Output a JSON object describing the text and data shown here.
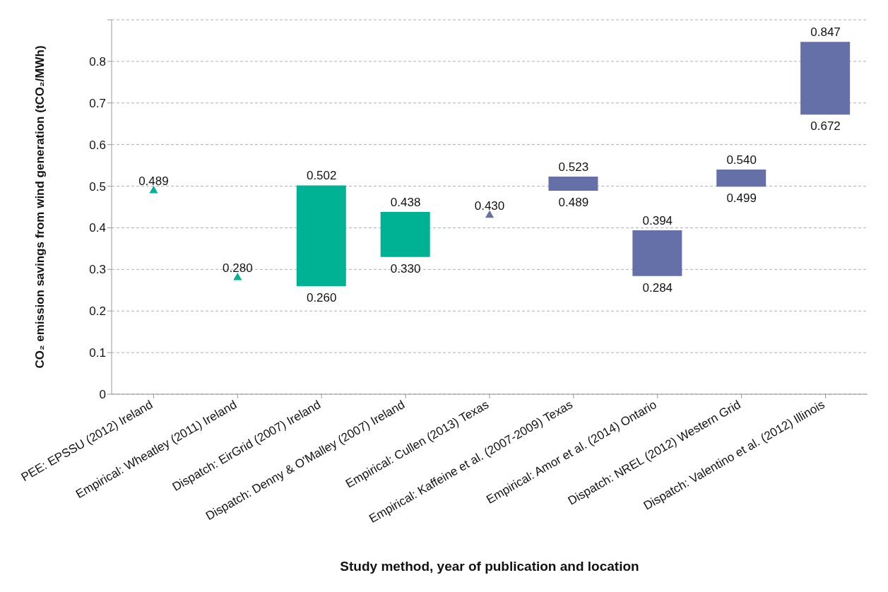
{
  "chart_data": {
    "type": "bar",
    "xlabel": "Study method, year of publication and location",
    "ylabel": "CO₂ emission savings  from wind generation (tCO₂/MWh)",
    "categories": [
      "PEE: EPSSU (2012) Ireland",
      "Empirical: Wheatley (2011) Ireland",
      "Dispatch: EirGrid (2007) Ireland",
      "Dispatch: Denny & O'Malley (2007) Ireland",
      "Empirical: Cullen (2013) Texas",
      "Empirical: Kaffeine et al. (2007-2009) Texas",
      "Empirical: Amor et al. (2014) Ontario",
      "Dispatch: NREL (2012) Western Grid",
      "Dispatch: Valentino et al. (2012) Illinois"
    ],
    "series": [
      {
        "base": [
          null,
          null,
          0.26,
          0.33,
          null,
          0.489,
          0.284,
          0.499,
          0.672
        ],
        "values": [
          null,
          null,
          0.242,
          0.108,
          null,
          0.034,
          0.11,
          0.041,
          0.175
        ],
        "colors": [
          "#00b294",
          "#00b294",
          "#00b294",
          "#00b294",
          "#6670a8",
          "#6670a8",
          "#6670a8",
          "#6670a8",
          "#6670a8"
        ]
      },
      {
        "type": "scatter",
        "marker": "triangle",
        "values": [
          0.489,
          0.28,
          null,
          null,
          0.43,
          null,
          null,
          null,
          null
        ],
        "colors": [
          "#00b294",
          "#00b294",
          "#00b294",
          "#00b294",
          "#6670a8",
          "#6670a8",
          "#6670a8",
          "#6670a8",
          "#6670a8"
        ]
      }
    ],
    "annotations": [
      {
        "text": "0.489",
        "x": "PEE: EPSSU (2012) Ireland",
        "y": 0.489
      },
      {
        "text": "0.280",
        "x": "Empirical: Wheatley (2011) Ireland",
        "y": 0.28
      },
      {
        "text": "0.502",
        "x": "Dispatch: EirGrid (2007) Ireland",
        "y": 0.502
      },
      {
        "text": "0.260",
        "x": "Dispatch: EirGrid (2007) Ireland",
        "y": 0.26
      },
      {
        "text": "0.438",
        "x": "Dispatch: Denny & O'Malley (2007) Ireland",
        "y": 0.438
      },
      {
        "text": "0.330",
        "x": "Dispatch: Denny & O'Malley (2007) Ireland",
        "y": 0.33
      },
      {
        "text": "0.430",
        "x": "Empirical: Cullen (2013) Texas",
        "y": 0.43
      },
      {
        "text": "0.523",
        "x": "Empirical: Kaffeine et al. (2007-2009) Texas",
        "y": 0.523
      },
      {
        "text": "0.489",
        "x": "Empirical: Kaffeine et al. (2007-2009) Texas",
        "y": 0.489
      },
      {
        "text": "0.394",
        "x": "Empirical: Amor et al. (2014) Ontario",
        "y": 0.394
      },
      {
        "text": "0.284",
        "x": "Empirical: Amor et al. (2014) Ontario",
        "y": 0.284
      },
      {
        "text": "0.540",
        "x": "Dispatch: NREL (2012) Western Grid",
        "y": 0.54
      },
      {
        "text": "0.499",
        "x": "Dispatch: NREL (2012) Western Grid",
        "y": 0.499
      },
      {
        "text": "0.847",
        "x": "Dispatch: Valentino et al. (2012) Illinois",
        "y": 0.847
      },
      {
        "text": "0.672",
        "x": "Dispatch: Valentino et al. (2012) Illinois",
        "y": 0.672
      }
    ],
    "ylim": [
      0,
      0.9
    ],
    "yticks": [
      0,
      0.1,
      0.2,
      0.3,
      0.4,
      0.5,
      0.6,
      0.7,
      0.8,
      {
        "value": 0.9,
        "label": null
      }
    ],
    "grid": "y",
    "line_style": "dashed",
    "legend": false
  }
}
